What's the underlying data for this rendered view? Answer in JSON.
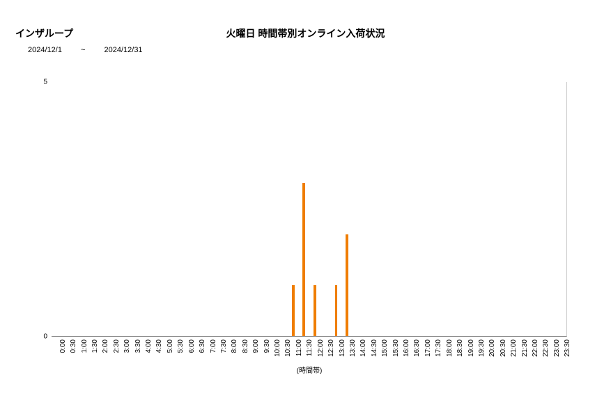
{
  "brand": "インザループ",
  "title": "火曜日 時間帯別オンライン入荷状況",
  "date_from": "2024/12/1",
  "date_sep": "~",
  "date_to": "2024/12/31",
  "axis_title": "(時間帯)",
  "chart": {
    "type": "bar",
    "bar_color": "#ef7d00",
    "plot_border_right_color": "#c8c8c8",
    "plot_border_bottom_color": "#707070",
    "background_color": "#ffffff",
    "y": {
      "min": 0,
      "max": 5,
      "ticks": [
        0,
        5
      ],
      "tick_fontsize": 10
    },
    "x": {
      "categories": [
        "0:00",
        "0:30",
        "1:00",
        "1:30",
        "2:00",
        "2:30",
        "3:00",
        "3:30",
        "4:00",
        "4:30",
        "5:00",
        "5:30",
        "6:00",
        "6:30",
        "7:00",
        "7:30",
        "8:00",
        "8:30",
        "9:00",
        "9:30",
        "10:00",
        "10:30",
        "11:00",
        "11:30",
        "12:00",
        "12:30",
        "13:00",
        "13:30",
        "14:00",
        "14:30",
        "15:00",
        "15:30",
        "16:00",
        "16:30",
        "17:00",
        "17:30",
        "18:00",
        "18:30",
        "19:00",
        "19:30",
        "20:00",
        "20:30",
        "21:00",
        "21:30",
        "22:00",
        "22:30",
        "23:00",
        "23:30"
      ],
      "label_fontsize": 10,
      "label_rotation_deg": -90
    },
    "values": [
      0,
      0,
      0,
      0,
      0,
      0,
      0,
      0,
      0,
      0,
      0,
      0,
      0,
      0,
      0,
      0,
      0,
      0,
      0,
      0,
      0,
      0,
      1,
      3,
      1,
      0,
      1,
      2,
      0,
      0,
      0,
      0,
      0,
      0,
      0,
      0,
      0,
      0,
      0,
      0,
      0,
      0,
      0,
      0,
      0,
      0,
      0,
      0
    ],
    "bar_width_ratio": 0.25
  }
}
